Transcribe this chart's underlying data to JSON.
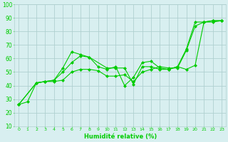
{
  "title": "",
  "xlabel": "Humidité relative (%)",
  "ylabel": "",
  "bg_color": "#d8eff0",
  "grid_color": "#b0d0d0",
  "line_color": "#00cc00",
  "marker_color": "#00cc00",
  "xlim": [
    -0.5,
    23.5
  ],
  "ylim": [
    10,
    100
  ],
  "yticks": [
    10,
    20,
    30,
    40,
    50,
    60,
    70,
    80,
    90,
    100
  ],
  "xticks": [
    0,
    1,
    2,
    3,
    4,
    5,
    6,
    7,
    8,
    9,
    10,
    11,
    12,
    13,
    14,
    15,
    16,
    17,
    18,
    19,
    20,
    21,
    22,
    23
  ],
  "line1": {
    "x": [
      0,
      1,
      2,
      3,
      4,
      5,
      6,
      7,
      8,
      9,
      10,
      11,
      12,
      13,
      14,
      15,
      16,
      17,
      18,
      19,
      20,
      21,
      22,
      23
    ],
    "y": [
      26,
      28,
      42,
      43,
      44,
      50,
      57,
      62,
      61,
      54,
      52,
      54,
      40,
      46,
      57,
      58,
      53,
      52,
      54,
      67,
      87,
      87,
      88,
      88
    ]
  },
  "line2": {
    "x": [
      0,
      2,
      3,
      4,
      5,
      6,
      7,
      8,
      10,
      11,
      12,
      13,
      14,
      15,
      16,
      17,
      18,
      19,
      20,
      21,
      22,
      23
    ],
    "y": [
      26,
      42,
      43,
      44,
      53,
      65,
      63,
      61,
      53,
      53,
      53,
      41,
      54,
      54,
      52,
      52,
      54,
      52,
      55,
      87,
      87,
      88
    ]
  },
  "line3": {
    "x": [
      0,
      2,
      3,
      4,
      5,
      6,
      7,
      8,
      9,
      10,
      11,
      12,
      13,
      14,
      15,
      16,
      17,
      18,
      19,
      20,
      21,
      22,
      23
    ],
    "y": [
      26,
      42,
      43,
      43,
      44,
      50,
      52,
      52,
      51,
      47,
      47,
      48,
      43,
      50,
      52,
      54,
      53,
      53,
      66,
      84,
      87,
      88,
      88
    ]
  }
}
